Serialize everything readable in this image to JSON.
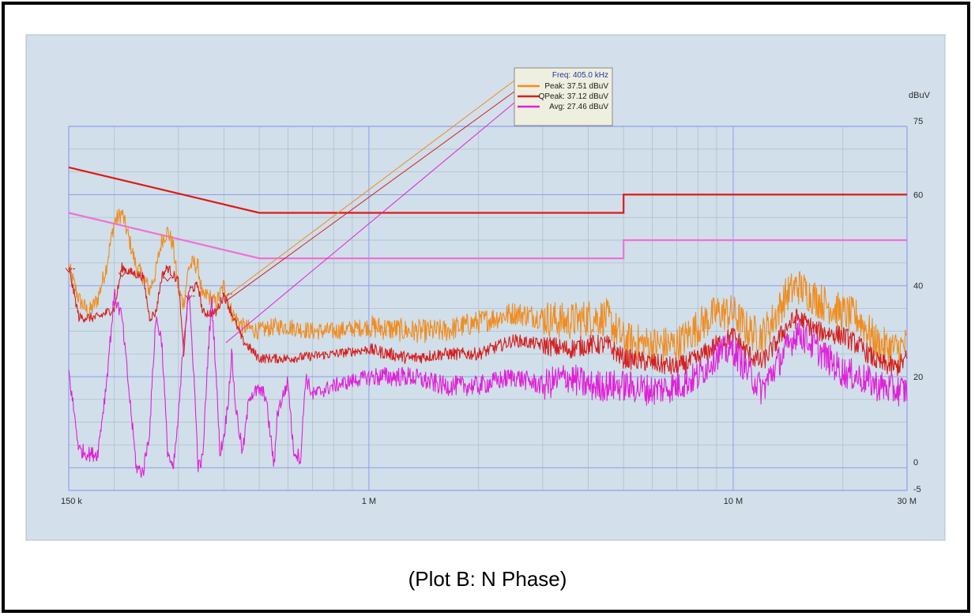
{
  "caption": "(Plot B: N Phase)",
  "chart_data": {
    "type": "line",
    "x_scale": "log",
    "x_range_hz": [
      150000,
      30000000
    ],
    "y_range": [
      -5,
      75
    ],
    "y_unit": "dBuV",
    "grid": true,
    "background_color": "#d3e0eb",
    "plot_color": "#d0dfe9",
    "grid_color": "#8f9eea",
    "x_ticks": [
      {
        "value": 150000,
        "label": "150 k"
      },
      {
        "value": 1000000,
        "label": "1 M"
      },
      {
        "value": 10000000,
        "label": "10 M"
      },
      {
        "value": 30000000,
        "label": "30 M"
      }
    ],
    "y_ticks": [
      {
        "value": 75,
        "label": "75"
      },
      {
        "value": 60,
        "label": "60"
      },
      {
        "value": 40,
        "label": "40"
      },
      {
        "value": 20,
        "label": "20"
      },
      {
        "value": 0,
        "label": "0"
      },
      {
        "value": -5,
        "label": "-5"
      }
    ],
    "marker_readout": {
      "freq_label": "Freq: 405.0 kHz",
      "entries": [
        {
          "label": "Peak: 37.51 dBuV",
          "color": "#f08c1e"
        },
        {
          "label": "QPeak: 37.12 dBuV",
          "color": "#d42020"
        },
        {
          "label": "Avg: 27.46 dBuV",
          "color": "#e020d8"
        }
      ],
      "marker_freq_hz": 405000
    },
    "limit_lines": [
      {
        "name": "QP limit",
        "color": "#e01818",
        "points": [
          [
            150000,
            66
          ],
          [
            500000,
            56
          ],
          [
            5000000,
            56
          ],
          [
            5000000,
            60
          ],
          [
            30000000,
            60
          ]
        ]
      },
      {
        "name": "AV limit",
        "color": "#f070d8",
        "points": [
          [
            150000,
            56
          ],
          [
            500000,
            46
          ],
          [
            5000000,
            46
          ],
          [
            5000000,
            50
          ],
          [
            30000000,
            50
          ]
        ]
      }
    ],
    "series": [
      {
        "color": "#f08c1e",
        "noise": 2.6,
        "points": [
          [
            150000,
            44
          ],
          [
            160000,
            37
          ],
          [
            170000,
            34
          ],
          [
            180000,
            37
          ],
          [
            190000,
            44
          ],
          [
            200000,
            54
          ],
          [
            210000,
            56
          ],
          [
            220000,
            50
          ],
          [
            230000,
            44
          ],
          [
            240000,
            42
          ],
          [
            250000,
            39
          ],
          [
            260000,
            43
          ],
          [
            270000,
            50
          ],
          [
            280000,
            52
          ],
          [
            290000,
            49
          ],
          [
            300000,
            39
          ],
          [
            310000,
            36
          ],
          [
            320000,
            44
          ],
          [
            330000,
            45
          ],
          [
            340000,
            44
          ],
          [
            350000,
            37
          ],
          [
            360000,
            38
          ],
          [
            380000,
            36
          ],
          [
            400000,
            40
          ],
          [
            420000,
            34
          ],
          [
            450000,
            31
          ],
          [
            500000,
            30
          ],
          [
            550000,
            31
          ],
          [
            600000,
            31
          ],
          [
            700000,
            30
          ],
          [
            800000,
            30
          ],
          [
            1000000,
            31
          ],
          [
            1300000,
            30
          ],
          [
            1600000,
            30
          ],
          [
            2000000,
            32
          ],
          [
            2500000,
            34
          ],
          [
            3000000,
            33
          ],
          [
            3500000,
            32
          ],
          [
            4000000,
            33
          ],
          [
            4500000,
            33
          ],
          [
            5000000,
            28
          ],
          [
            6000000,
            27
          ],
          [
            7000000,
            27
          ],
          [
            8000000,
            31
          ],
          [
            9000000,
            34
          ],
          [
            10000000,
            34
          ],
          [
            11000000,
            30
          ],
          [
            12000000,
            29
          ],
          [
            13000000,
            33
          ],
          [
            14000000,
            38
          ],
          [
            15000000,
            40
          ],
          [
            17000000,
            37
          ],
          [
            20000000,
            34
          ],
          [
            22000000,
            33
          ],
          [
            25000000,
            27
          ],
          [
            28000000,
            26
          ],
          [
            30000000,
            27
          ]
        ]
      },
      {
        "color": "#d42020",
        "noise": 1.4,
        "points": [
          [
            150000,
            44
          ],
          [
            160000,
            33
          ],
          [
            180000,
            33
          ],
          [
            200000,
            35
          ],
          [
            210000,
            44
          ],
          [
            220000,
            43
          ],
          [
            240000,
            42
          ],
          [
            250000,
            33
          ],
          [
            260000,
            34
          ],
          [
            270000,
            42
          ],
          [
            280000,
            44
          ],
          [
            300000,
            41
          ],
          [
            310000,
            25
          ],
          [
            320000,
            39
          ],
          [
            340000,
            40
          ],
          [
            350000,
            34
          ],
          [
            360000,
            34
          ],
          [
            380000,
            34
          ],
          [
            400000,
            38
          ],
          [
            420000,
            34
          ],
          [
            450000,
            28
          ],
          [
            500000,
            24
          ],
          [
            600000,
            24
          ],
          [
            800000,
            25
          ],
          [
            1000000,
            26
          ],
          [
            1300000,
            24
          ],
          [
            1600000,
            25
          ],
          [
            2000000,
            25
          ],
          [
            2500000,
            28
          ],
          [
            3000000,
            27
          ],
          [
            3500000,
            26
          ],
          [
            4000000,
            27
          ],
          [
            4500000,
            27
          ],
          [
            5000000,
            24
          ],
          [
            6000000,
            23
          ],
          [
            7000000,
            22
          ],
          [
            8000000,
            24
          ],
          [
            9000000,
            27
          ],
          [
            10000000,
            29
          ],
          [
            11000000,
            25
          ],
          [
            12000000,
            23
          ],
          [
            13000000,
            27
          ],
          [
            14000000,
            31
          ],
          [
            15000000,
            33
          ],
          [
            17000000,
            30
          ],
          [
            20000000,
            29
          ],
          [
            22000000,
            27
          ],
          [
            25000000,
            23
          ],
          [
            28000000,
            22
          ],
          [
            30000000,
            24
          ]
        ]
      },
      {
        "color": "#e020d8",
        "noise": 2.2,
        "points": [
          [
            150000,
            21
          ],
          [
            160000,
            4
          ],
          [
            170000,
            3
          ],
          [
            180000,
            3
          ],
          [
            190000,
            18
          ],
          [
            200000,
            38
          ],
          [
            210000,
            33
          ],
          [
            220000,
            16
          ],
          [
            230000,
            0
          ],
          [
            240000,
            -1
          ],
          [
            250000,
            8
          ],
          [
            260000,
            33
          ],
          [
            270000,
            28
          ],
          [
            280000,
            4
          ],
          [
            290000,
            -1
          ],
          [
            300000,
            11
          ],
          [
            310000,
            28
          ],
          [
            320000,
            39
          ],
          [
            330000,
            22
          ],
          [
            340000,
            0
          ],
          [
            350000,
            2
          ],
          [
            360000,
            22
          ],
          [
            370000,
            37
          ],
          [
            380000,
            22
          ],
          [
            390000,
            3
          ],
          [
            400000,
            7
          ],
          [
            410000,
            14
          ],
          [
            420000,
            25
          ],
          [
            430000,
            14
          ],
          [
            450000,
            3
          ],
          [
            470000,
            16
          ],
          [
            500000,
            17
          ],
          [
            520000,
            16
          ],
          [
            550000,
            0
          ],
          [
            560000,
            12
          ],
          [
            600000,
            19
          ],
          [
            620000,
            4
          ],
          [
            650000,
            2
          ],
          [
            670000,
            20
          ],
          [
            700000,
            16
          ],
          [
            800000,
            18
          ],
          [
            1000000,
            20
          ],
          [
            1300000,
            20
          ],
          [
            1600000,
            18
          ],
          [
            2000000,
            18
          ],
          [
            2500000,
            20
          ],
          [
            3000000,
            18
          ],
          [
            3500000,
            20
          ],
          [
            4000000,
            18
          ],
          [
            5000000,
            18
          ],
          [
            6000000,
            17
          ],
          [
            7000000,
            18
          ],
          [
            8000000,
            20
          ],
          [
            9000000,
            25
          ],
          [
            10000000,
            26
          ],
          [
            11000000,
            21
          ],
          [
            12000000,
            17
          ],
          [
            13000000,
            22
          ],
          [
            14000000,
            26
          ],
          [
            15000000,
            30
          ],
          [
            17000000,
            26
          ],
          [
            20000000,
            21
          ],
          [
            22000000,
            20
          ],
          [
            25000000,
            18
          ],
          [
            28000000,
            17
          ],
          [
            30000000,
            17
          ]
        ]
      }
    ],
    "marker_labels": [
      {
        "freq_hz": 150000,
        "value": 43
      },
      {
        "freq_hz": 210000,
        "value": 42
      },
      {
        "freq_hz": 280000,
        "value": 41
      },
      {
        "freq_hz": 320000,
        "value": 37
      },
      {
        "freq_hz": 405000,
        "value": 37.5
      }
    ]
  }
}
